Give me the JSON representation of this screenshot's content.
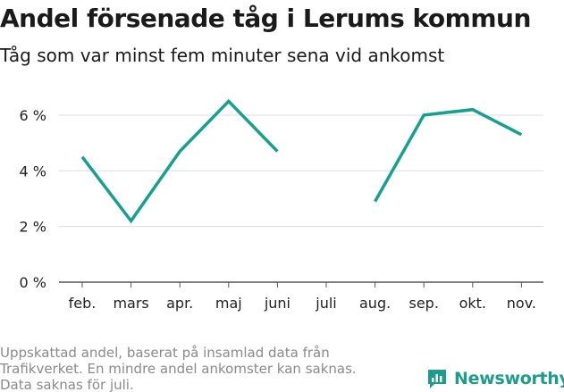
{
  "header": {
    "title": "Andel försenade tåg i Lerums kommun",
    "subtitle": "Tåg som var minst fem minuter sena vid ankomst"
  },
  "chart_data": {
    "type": "line",
    "title": "Andel försenade tåg i Lerums kommun",
    "subtitle": "Tåg som var minst fem minuter sena vid ankomst",
    "xlabel": "",
    "ylabel": "",
    "categories": [
      "feb.",
      "mars",
      "apr.",
      "maj",
      "juni",
      "juli",
      "aug.",
      "sep.",
      "okt.",
      "nov."
    ],
    "series": [
      {
        "name": "Andel försenade tåg",
        "color": "#16a08f",
        "values": [
          4.5,
          2.2,
          4.7,
          6.5,
          4.7,
          null,
          2.9,
          6.0,
          6.2,
          5.3
        ]
      }
    ],
    "yticks": [
      0,
      2,
      4,
      6
    ],
    "ytick_labels": [
      "0 %",
      "2 %",
      "4 %",
      "6 %"
    ],
    "ylim": [
      0,
      6.8
    ],
    "grid": true,
    "gridline_color": "#dddddd",
    "baseline_color": "#555555"
  },
  "footnote": {
    "lines": [
      "Uppskattad andel, baserat på insamlad data från",
      "Trafikverket. En mindre andel ankomster kan saknas.",
      "Data saknas för juli."
    ]
  },
  "brand": {
    "name": "Newsworthy",
    "icon": "newsworthy-logo-icon",
    "color": "#1e9c8e"
  }
}
